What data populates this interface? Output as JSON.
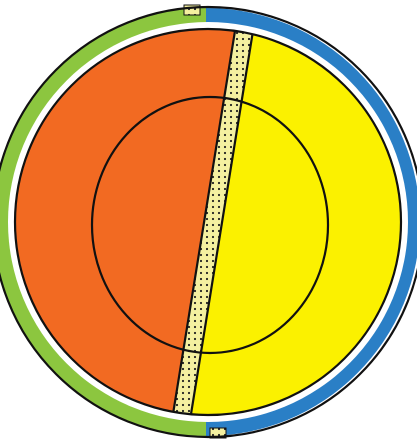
{
  "diagram": {
    "regions": [
      {
        "id": "left-half",
        "color_name": "orange",
        "color": "#f26a22"
      },
      {
        "id": "right-half",
        "color_name": "yellow",
        "color": "#fbf100"
      },
      {
        "id": "center-stripe",
        "color_name": "pale-yellow-dotted",
        "color": "#f4f0a0"
      }
    ],
    "rim": {
      "left_color": "#8cc63f",
      "right_color": "#2a7fc6"
    },
    "rings": 2,
    "dot_color": "#222222"
  }
}
